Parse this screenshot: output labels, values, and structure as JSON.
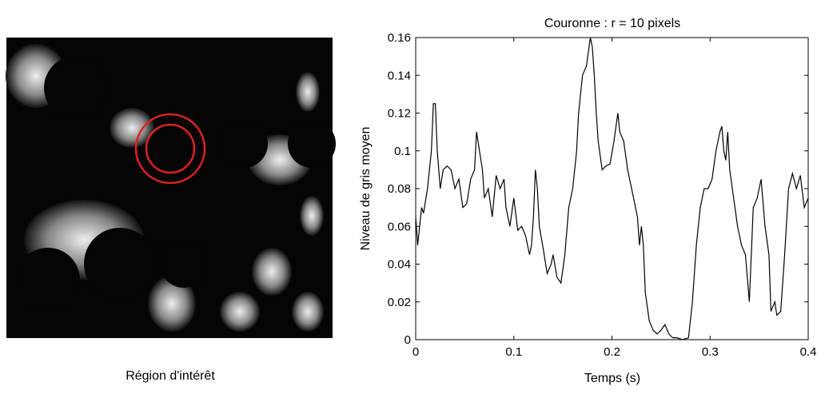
{
  "panel_caption": "Région d'intérêt",
  "chart_data": {
    "type": "line",
    "title": "Couronne : r = 10 pixels",
    "x_label": "Temps (s)",
    "y_label": "Niveau de gris moyen",
    "color": "#000000",
    "x": [
      0,
      0.002,
      0.006,
      0.008,
      0.012,
      0.016,
      0.018,
      0.02,
      0.022,
      0.025,
      0.028,
      0.032,
      0.036,
      0.04,
      0.044,
      0.048,
      0.052,
      0.056,
      0.06,
      0.062,
      0.065,
      0.068,
      0.07,
      0.074,
      0.078,
      0.082,
      0.086,
      0.09,
      0.092,
      0.096,
      0.1,
      0.104,
      0.108,
      0.112,
      0.116,
      0.118,
      0.12,
      0.122,
      0.124,
      0.126,
      0.13,
      0.134,
      0.138,
      0.14,
      0.144,
      0.148,
      0.152,
      0.156,
      0.16,
      0.164,
      0.166,
      0.17,
      0.174,
      0.178,
      0.18,
      0.182,
      0.184,
      0.186,
      0.19,
      0.194,
      0.198,
      0.202,
      0.206,
      0.208,
      0.212,
      0.216,
      0.22,
      0.224,
      0.226,
      0.228,
      0.23,
      0.232,
      0.234,
      0.238,
      0.242,
      0.246,
      0.25,
      0.254,
      0.258,
      0.262,
      0.266,
      0.272,
      0.278,
      0.282,
      0.286,
      0.29,
      0.294,
      0.298,
      0.302,
      0.306,
      0.31,
      0.312,
      0.314,
      0.316,
      0.318,
      0.32,
      0.324,
      0.328,
      0.332,
      0.336,
      0.34,
      0.344,
      0.348,
      0.352,
      0.356,
      0.36,
      0.362,
      0.366,
      0.368,
      0.372,
      0.376,
      0.38,
      0.384,
      0.388,
      0.392,
      0.396,
      0.4
    ],
    "values": [
      0.065,
      0.05,
      0.07,
      0.067,
      0.08,
      0.1,
      0.125,
      0.125,
      0.1,
      0.08,
      0.09,
      0.092,
      0.09,
      0.08,
      0.085,
      0.07,
      0.072,
      0.085,
      0.09,
      0.11,
      0.1,
      0.09,
      0.075,
      0.08,
      0.065,
      0.087,
      0.08,
      0.085,
      0.07,
      0.06,
      0.075,
      0.058,
      0.06,
      0.055,
      0.045,
      0.05,
      0.065,
      0.09,
      0.08,
      0.06,
      0.048,
      0.035,
      0.04,
      0.045,
      0.033,
      0.03,
      0.045,
      0.07,
      0.08,
      0.1,
      0.12,
      0.14,
      0.145,
      0.16,
      0.155,
      0.14,
      0.12,
      0.105,
      0.09,
      0.092,
      0.093,
      0.105,
      0.12,
      0.11,
      0.105,
      0.09,
      0.08,
      0.07,
      0.065,
      0.05,
      0.06,
      0.05,
      0.025,
      0.01,
      0.005,
      0.003,
      0.005,
      0.008,
      0.003,
      0.001,
      0.001,
      0,
      0.001,
      0.02,
      0.05,
      0.07,
      0.08,
      0.08,
      0.085,
      0.1,
      0.11,
      0.113,
      0.1,
      0.095,
      0.11,
      0.09,
      0.075,
      0.06,
      0.05,
      0.045,
      0.02,
      0.07,
      0.075,
      0.085,
      0.06,
      0.045,
      0.015,
      0.02,
      0.013,
      0.015,
      0.045,
      0.08,
      0.088,
      0.08,
      0.087,
      0.07,
      0.075
    ],
    "xlim": [
      0,
      0.4
    ],
    "xticks": [
      0,
      0.1,
      0.2,
      0.3,
      0.4
    ],
    "ylim": [
      0,
      0.16
    ],
    "yticks": [
      0,
      0.02,
      0.04,
      0.06,
      0.08,
      0.1,
      0.12,
      0.14,
      0.16
    ]
  }
}
